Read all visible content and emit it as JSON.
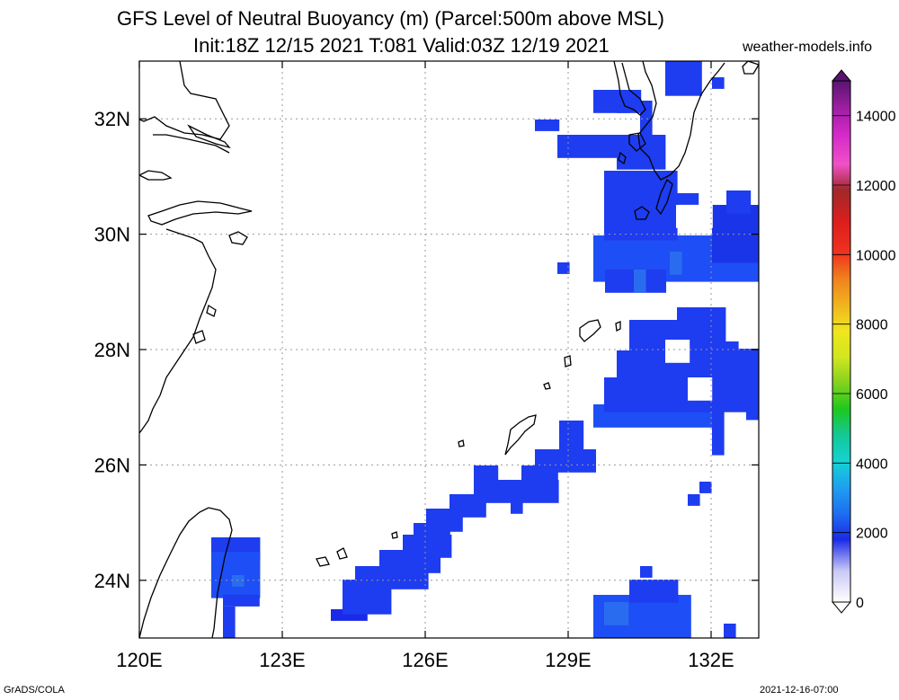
{
  "title_line1": "GFS Level of Neutral Buoyancy (m) (Parcel:500m above MSL)",
  "title_line2": "Init:18Z 12/15 2021 T:081 Valid:03Z 12/19 2021",
  "site": "weather-models.info",
  "footer_left": "GrADS/COLA",
  "footer_right": "2021-12-16-07:00",
  "map": {
    "lon_ticks": [
      "120E",
      "123E",
      "126E",
      "129E",
      "132E"
    ],
    "lat_ticks": [
      "32N",
      "30N",
      "28N",
      "26N",
      "24N"
    ],
    "lon_range": [
      120,
      133
    ],
    "lat_range": [
      23,
      33
    ],
    "grid": true
  },
  "colorbar": {
    "labels": [
      "14000",
      "12000",
      "10000",
      "8000",
      "6000",
      "4000",
      "2000",
      "0"
    ],
    "range": [
      0,
      15000
    ]
  }
}
